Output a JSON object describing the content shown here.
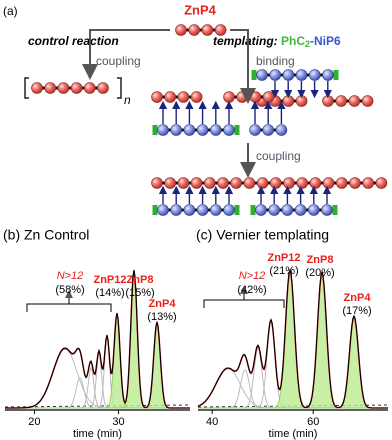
{
  "panel_a": {
    "label": "(a)",
    "monomer": "ZnP4",
    "control": "control reaction",
    "templating": "templating: ",
    "template_a": "PhC",
    "template_sub": "2",
    "template_b": "-NiP6",
    "coupling_1": "coupling",
    "binding": "binding",
    "polymer_n": "n",
    "coupling_2": "coupling"
  },
  "panel_b": {
    "label": "(b) Zn Control",
    "xlabel": "time (min)",
    "xticks": [
      20,
      30
    ],
    "bracket_label": "N>12",
    "bracket_pct": "(58%)",
    "peaks": [
      {
        "name": "ZnP12",
        "pct": "(14%)"
      },
      {
        "name": "ZnP8",
        "pct": "(15%)"
      },
      {
        "name": "ZnP4",
        "pct": "(13%)"
      }
    ]
  },
  "panel_c": {
    "label": "(c) Vernier templating",
    "xlabel": "time (min)",
    "xticks": [
      40,
      60
    ],
    "bracket_label": "N>12",
    "bracket_pct": "(42%)",
    "peaks": [
      {
        "name": "ZnP12",
        "pct": "(21%)"
      },
      {
        "name": "ZnP8",
        "pct": "(20%)"
      },
      {
        "name": "ZnP4",
        "pct": "(17%)"
      }
    ]
  }
}
